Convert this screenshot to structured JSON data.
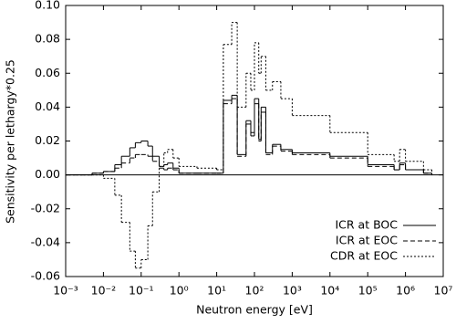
{
  "chart_data": {
    "type": "line",
    "step": true,
    "log_x": true,
    "xlabel": "Neutron energy [eV]",
    "ylabel": "Sensitivity per lethargy*0.25",
    "xlim": [
      0.001,
      10000000
    ],
    "ylim": [
      -0.06,
      0.1
    ],
    "xticks": [
      {
        "value": 0.001,
        "label": "10⁻³"
      },
      {
        "value": 0.01,
        "label": "10⁻²"
      },
      {
        "value": 0.1,
        "label": "10⁻¹"
      },
      {
        "value": 1,
        "label": "10⁰"
      },
      {
        "value": 10,
        "label": "10¹"
      },
      {
        "value": 100,
        "label": "10²"
      },
      {
        "value": 1000,
        "label": "10³"
      },
      {
        "value": 10000,
        "label": "10⁴"
      },
      {
        "value": 100000,
        "label": "10⁵"
      },
      {
        "value": 1000000,
        "label": "10⁶"
      },
      {
        "value": 10000000,
        "label": "10⁷"
      }
    ],
    "yticks": [
      -0.06,
      -0.04,
      -0.02,
      {
        "value": 0,
        "label": "0.00"
      },
      0.02,
      0.04,
      0.06,
      0.08,
      {
        "value": 0.1,
        "label": "0.10"
      }
    ],
    "legend": "lower right",
    "x": [
      0.001,
      0.005,
      0.01,
      0.02,
      0.03,
      0.05,
      0.07,
      0.1,
      0.15,
      0.2,
      0.3,
      0.4,
      0.5,
      0.7,
      1,
      3,
      10,
      15,
      25,
      35,
      60,
      80,
      100,
      130,
      150,
      200,
      300,
      500,
      1000,
      10000,
      100000,
      500000,
      700000,
      1000000,
      3000000,
      5000000
    ],
    "series": [
      {
        "name": "ICR at BOC",
        "color": "#000000",
        "dash": "solid",
        "values": [
          0,
          0.001,
          0.002,
          0.006,
          0.011,
          0.016,
          0.019,
          0.02,
          0.017,
          0.011,
          0.005,
          0.006,
          0.007,
          0.004,
          0.001,
          0.001,
          0.001,
          0.044,
          0.047,
          0.012,
          0.032,
          0.025,
          0.045,
          0.021,
          0.04,
          0.013,
          0.018,
          0.015,
          0.013,
          0.011,
          0.006,
          0.003,
          0.007,
          0.003,
          0.001,
          0
        ]
      },
      {
        "name": "ICR at EOC",
        "color": "#000000",
        "dash": "dashed",
        "values": [
          0,
          0.001,
          0.002,
          0.004,
          0.007,
          0.01,
          0.012,
          0.012,
          0.011,
          0.008,
          0.004,
          0.003,
          0.004,
          0.003,
          0.001,
          0.001,
          0.001,
          0.042,
          0.045,
          0.011,
          0.03,
          0.023,
          0.042,
          0.02,
          0.037,
          0.012,
          0.017,
          0.014,
          0.012,
          0.01,
          0.005,
          0.003,
          0.006,
          0.003,
          0.001,
          0
        ]
      },
      {
        "name": "CDR at EOC",
        "color": "#000000",
        "dash": "dotted",
        "values": [
          0,
          0,
          -0.002,
          -0.012,
          -0.028,
          -0.045,
          -0.055,
          -0.05,
          -0.03,
          -0.01,
          0.005,
          0.013,
          0.015,
          0.01,
          0.005,
          0.004,
          0.003,
          0.077,
          0.09,
          0.04,
          0.06,
          0.05,
          0.078,
          0.06,
          0.07,
          0.05,
          0.055,
          0.045,
          0.035,
          0.025,
          0.012,
          0.008,
          0.015,
          0.008,
          0.003,
          0
        ]
      }
    ]
  }
}
